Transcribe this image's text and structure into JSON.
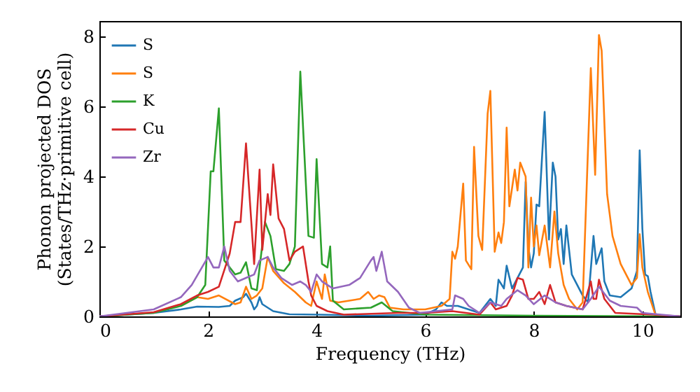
{
  "chart_data": {
    "type": "line",
    "xlabel": "Frequency (THz)",
    "ylabel": "Phonon projected DOS\n(States/THz·primitive cell)",
    "xlim": [
      0,
      10.7
    ],
    "ylim": [
      0,
      8.45
    ],
    "xticks": [
      0,
      2,
      4,
      6,
      8,
      10
    ],
    "yticks": [
      0,
      2,
      4,
      6,
      8
    ],
    "legend": "top left",
    "grid": false,
    "series": [
      {
        "name": "S",
        "color": "#1f77b4",
        "x": [
          0,
          1,
          1.5,
          1.8,
          2.2,
          2.4,
          2.5,
          2.65,
          2.7,
          2.8,
          2.85,
          2.9,
          2.95,
          3.0,
          3.2,
          3.5,
          4,
          5,
          6,
          6.2,
          6.3,
          6.4,
          6.6,
          7,
          7.2,
          7.3,
          7.35,
          7.45,
          7.5,
          7.6,
          7.8,
          7.85,
          7.9,
          7.95,
          8.0,
          8.05,
          8.1,
          8.2,
          8.28,
          8.35,
          8.4,
          8.45,
          8.5,
          8.55,
          8.6,
          8.7,
          8.9,
          9.0,
          9.1,
          9.15,
          9.25,
          9.3,
          9.4,
          9.6,
          9.8,
          9.9,
          9.95,
          10.0,
          10.05,
          10.1,
          10.15,
          10.25,
          10.7
        ],
        "values": [
          0,
          0.1,
          0.2,
          0.28,
          0.27,
          0.3,
          0.45,
          0.55,
          0.65,
          0.4,
          0.2,
          0.3,
          0.55,
          0.35,
          0.15,
          0.06,
          0.05,
          0.02,
          0.05,
          0.2,
          0.4,
          0.3,
          0.3,
          0.1,
          0.5,
          0.3,
          1.05,
          0.8,
          1.45,
          0.8,
          1.4,
          3.85,
          2.0,
          1.4,
          1.8,
          3.2,
          3.15,
          5.85,
          2.2,
          4.4,
          4.0,
          2.2,
          2.5,
          1.5,
          2.6,
          1.2,
          0.6,
          0.4,
          2.3,
          1.5,
          1.95,
          1.0,
          0.6,
          0.55,
          0.8,
          1.3,
          4.75,
          2.5,
          1.2,
          1.15,
          0.7,
          0,
          0
        ]
      },
      {
        "name": "S",
        "color": "#ff7f0e",
        "x": [
          1.5,
          1.8,
          2.0,
          2.2,
          2.5,
          2.6,
          2.7,
          2.8,
          2.9,
          3.0,
          3.1,
          3.2,
          3.4,
          3.6,
          3.8,
          3.9,
          4.0,
          4.1,
          4.15,
          4.25,
          4.4,
          4.8,
          4.95,
          5.05,
          5.15,
          5.25,
          5.35,
          5.6,
          6,
          6.3,
          6.45,
          6.5,
          6.55,
          6.6,
          6.7,
          6.75,
          6.85,
          6.9,
          6.98,
          7.05,
          7.15,
          7.2,
          7.28,
          7.35,
          7.4,
          7.45,
          7.5,
          7.55,
          7.65,
          7.7,
          7.75,
          7.85,
          7.9,
          7.95,
          8.0,
          8.05,
          8.1,
          8.2,
          8.3,
          8.38,
          8.45,
          8.55,
          8.65,
          8.8,
          8.9,
          9.05,
          9.13,
          9.2,
          9.25,
          9.35,
          9.45,
          9.6,
          9.8,
          9.9,
          9.95,
          10.0,
          10.1,
          10.25,
          10.7
        ],
        "values": [
          0.3,
          0.55,
          0.5,
          0.6,
          0.35,
          0.4,
          0.85,
          0.5,
          0.6,
          0.8,
          1.7,
          1.3,
          0.95,
          0.7,
          0.4,
          0.3,
          1.0,
          0.5,
          1.2,
          0.45,
          0.4,
          0.5,
          0.7,
          0.5,
          0.6,
          0.55,
          0.25,
          0.2,
          0.2,
          0.3,
          0.5,
          1.85,
          1.65,
          2.0,
          3.8,
          1.6,
          1.35,
          4.85,
          2.3,
          1.9,
          5.8,
          6.45,
          1.85,
          2.4,
          2.1,
          2.7,
          5.4,
          3.15,
          4.2,
          3.6,
          4.4,
          4.0,
          1.4,
          3.4,
          2.0,
          2.6,
          1.75,
          2.6,
          1.4,
          3.0,
          1.8,
          0.9,
          0.5,
          0.2,
          0.4,
          7.1,
          4.05,
          8.05,
          7.6,
          3.5,
          2.3,
          1.5,
          0.9,
          1.1,
          2.35,
          1.4,
          0.7,
          0,
          0
        ]
      },
      {
        "name": "K",
        "color": "#2ca02c",
        "x": [
          0,
          1,
          1.5,
          1.8,
          1.95,
          2.05,
          2.1,
          2.2,
          2.3,
          2.5,
          2.6,
          2.7,
          2.8,
          2.9,
          3.05,
          3.15,
          3.25,
          3.4,
          3.5,
          3.6,
          3.7,
          3.85,
          3.95,
          4.0,
          4.1,
          4.2,
          4.25,
          4.3,
          4.5,
          5.0,
          5.2,
          5.4,
          6,
          8,
          10.7
        ],
        "values": [
          0,
          0.1,
          0.3,
          0.55,
          0.9,
          4.15,
          4.15,
          5.95,
          1.6,
          1.2,
          1.25,
          1.55,
          0.8,
          0.75,
          2.7,
          2.3,
          1.35,
          1.3,
          1.5,
          2.0,
          7.0,
          2.3,
          2.25,
          4.5,
          1.5,
          1.4,
          2.0,
          0.45,
          0.2,
          0.25,
          0.4,
          0.15,
          0.05,
          0.02,
          0
        ]
      },
      {
        "name": "Cu",
        "color": "#d62728",
        "x": [
          0,
          1,
          1.5,
          1.8,
          2.0,
          2.2,
          2.4,
          2.5,
          2.6,
          2.7,
          2.85,
          2.95,
          3.0,
          3.1,
          3.15,
          3.2,
          3.3,
          3.4,
          3.5,
          3.6,
          3.75,
          3.85,
          3.9,
          4.0,
          4.2,
          4.5,
          5.5,
          6,
          6.5,
          7.0,
          7.2,
          7.3,
          7.5,
          7.6,
          7.7,
          7.8,
          7.9,
          8.0,
          8.1,
          8.2,
          8.3,
          8.4,
          8.6,
          8.9,
          9.05,
          9.1,
          9.15,
          9.2,
          9.3,
          9.5,
          10.2,
          10.7
        ],
        "values": [
          0,
          0.12,
          0.35,
          0.6,
          0.7,
          0.85,
          1.8,
          2.7,
          2.7,
          4.95,
          1.5,
          4.2,
          1.9,
          3.5,
          2.9,
          4.35,
          2.8,
          2.5,
          1.6,
          1.85,
          2.0,
          1.0,
          0.6,
          0.3,
          0.15,
          0.05,
          0.1,
          0.1,
          0.15,
          0.05,
          0.4,
          0.2,
          0.3,
          0.6,
          1.1,
          1.05,
          0.5,
          0.5,
          0.7,
          0.35,
          0.9,
          0.4,
          0.3,
          0.2,
          1.0,
          0.5,
          0.5,
          1.05,
          0.5,
          0.1,
          0.05,
          0
        ]
      },
      {
        "name": "Zr",
        "color": "#9467bd",
        "x": [
          0,
          1,
          1.5,
          1.7,
          1.85,
          2.0,
          2.1,
          2.2,
          2.3,
          2.4,
          2.55,
          2.7,
          2.85,
          2.95,
          3.1,
          3.2,
          3.35,
          3.55,
          3.7,
          3.8,
          3.9,
          4.0,
          4.1,
          4.3,
          4.6,
          4.8,
          5.0,
          5.05,
          5.1,
          5.2,
          5.3,
          5.5,
          5.7,
          5.9,
          6.2,
          6.5,
          6.55,
          6.7,
          6.8,
          7.0,
          7.2,
          7.4,
          7.5,
          7.7,
          7.85,
          8.0,
          8.2,
          8.4,
          8.6,
          8.9,
          9.05,
          9.2,
          9.4,
          9.6,
          9.9,
          10.0,
          10.7
        ],
        "values": [
          0,
          0.2,
          0.55,
          0.9,
          1.3,
          1.7,
          1.4,
          1.4,
          2.0,
          1.3,
          1.0,
          1.1,
          1.2,
          1.6,
          1.7,
          1.4,
          1.1,
          0.9,
          1.0,
          0.9,
          0.7,
          1.2,
          1.0,
          0.8,
          0.9,
          1.1,
          1.6,
          1.7,
          1.3,
          1.85,
          1.0,
          0.7,
          0.25,
          0.1,
          0.15,
          0.2,
          0.6,
          0.5,
          0.3,
          0.1,
          0.4,
          0.3,
          0.5,
          0.75,
          0.6,
          0.35,
          0.6,
          0.4,
          0.3,
          0.2,
          0.5,
          0.85,
          0.45,
          0.3,
          0.25,
          0.1,
          0
        ]
      }
    ]
  }
}
